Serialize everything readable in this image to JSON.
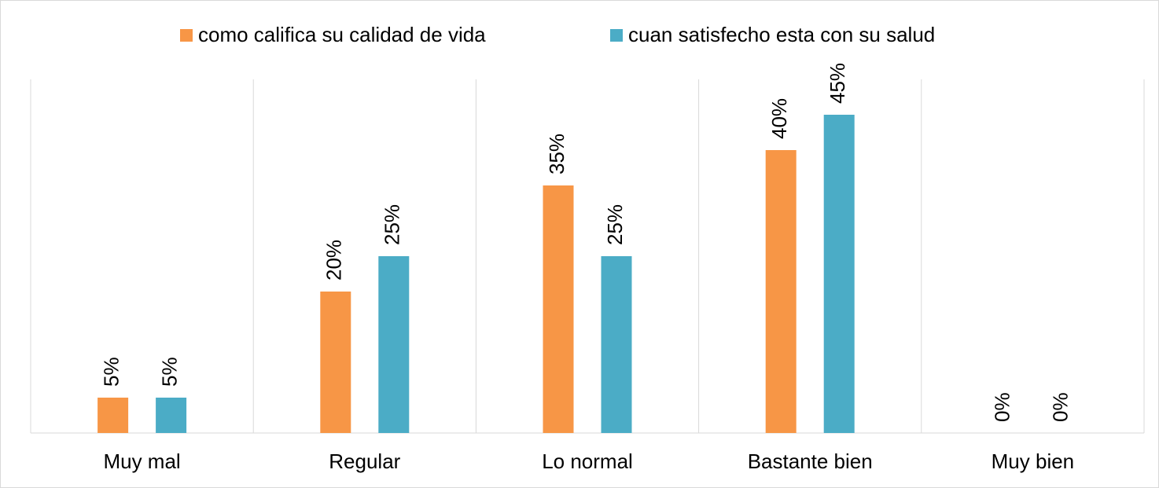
{
  "chart_data": {
    "type": "bar",
    "categories": [
      "Muy mal",
      "Regular",
      "Lo normal",
      "Bastante bien",
      "Muy bien"
    ],
    "series": [
      {
        "name": "como califica su calidad de vida",
        "color": "#f79646",
        "values": [
          5,
          20,
          35,
          40,
          0
        ],
        "value_labels": [
          "5%",
          "20%",
          "35%",
          "40%",
          "0%"
        ]
      },
      {
        "name": "cuan satisfecho esta con su salud",
        "color": "#4bacc6",
        "values": [
          5,
          25,
          25,
          45,
          0
        ],
        "value_labels": [
          "5%",
          "25%",
          "25%",
          "45%",
          "0%"
        ]
      }
    ],
    "ylim": [
      0,
      50
    ],
    "grid": true,
    "legend": "top"
  }
}
